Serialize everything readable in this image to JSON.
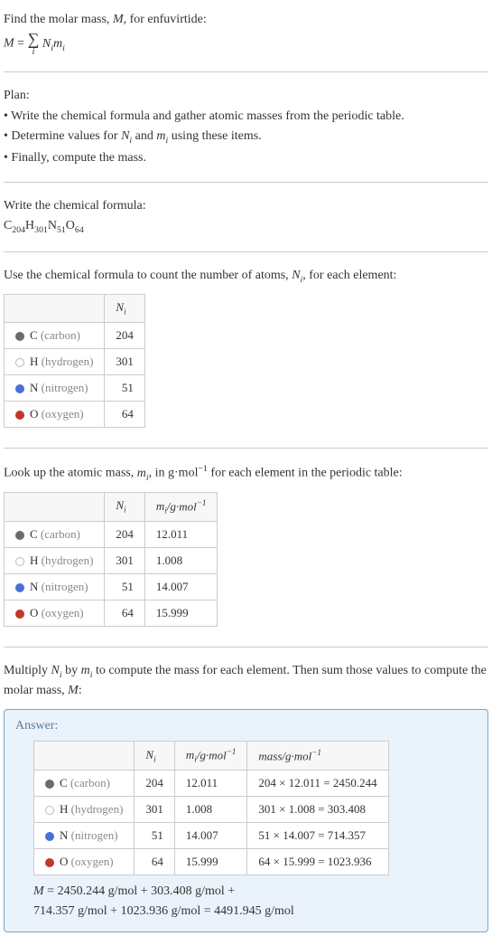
{
  "intro": {
    "line1": "Find the molar mass, M, for enfuvirtide:",
    "formula_prefix": "M = ",
    "formula_suffix_Ni": "N",
    "formula_suffix_mi": "m",
    "sub_i": "i"
  },
  "plan": {
    "heading": "Plan:",
    "items": [
      "• Write the chemical formula and gather atomic masses from the periodic table.",
      "• Determine values for Nᵢ and mᵢ using these items.",
      "• Finally, compute the mass."
    ]
  },
  "chemformula": {
    "heading": "Write the chemical formula:",
    "parts": [
      "C",
      "204",
      "H",
      "301",
      "N",
      "51",
      "O",
      "64"
    ]
  },
  "count": {
    "heading": "Use the chemical formula to count the number of atoms, Nᵢ, for each element:",
    "col_Ni": "Nᵢ",
    "rows": [
      {
        "dot": "#6b6b6b",
        "dot_border": "#6b6b6b",
        "symbol": "C",
        "name": "(carbon)",
        "N": "204"
      },
      {
        "dot": "#ffffff",
        "dot_border": "#bbb",
        "symbol": "H",
        "name": "(hydrogen)",
        "N": "301"
      },
      {
        "dot": "#4a6fd6",
        "dot_border": "#4a6fd6",
        "symbol": "N",
        "name": "(nitrogen)",
        "N": "51"
      },
      {
        "dot": "#c0392b",
        "dot_border": "#c0392b",
        "symbol": "O",
        "name": "(oxygen)",
        "N": "64"
      }
    ]
  },
  "lookup": {
    "heading": "Look up the atomic mass, mᵢ, in g·mol⁻¹ for each element in the periodic table:",
    "col_Ni": "Nᵢ",
    "col_mi": "mᵢ/g·mol⁻¹",
    "rows": [
      {
        "dot": "#6b6b6b",
        "dot_border": "#6b6b6b",
        "symbol": "C",
        "name": "(carbon)",
        "N": "204",
        "m": "12.011"
      },
      {
        "dot": "#ffffff",
        "dot_border": "#bbb",
        "symbol": "H",
        "name": "(hydrogen)",
        "N": "301",
        "m": "1.008"
      },
      {
        "dot": "#4a6fd6",
        "dot_border": "#4a6fd6",
        "symbol": "N",
        "name": "(nitrogen)",
        "N": "51",
        "m": "14.007"
      },
      {
        "dot": "#c0392b",
        "dot_border": "#c0392b",
        "symbol": "O",
        "name": "(oxygen)",
        "N": "64",
        "m": "15.999"
      }
    ]
  },
  "multiply": {
    "heading": "Multiply Nᵢ by mᵢ to compute the mass for each element. Then sum those values to compute the molar mass, M:"
  },
  "answer": {
    "label": "Answer:",
    "col_Ni": "Nᵢ",
    "col_mi": "mᵢ/g·mol⁻¹",
    "col_mass": "mass/g·mol⁻¹",
    "rows": [
      {
        "dot": "#6b6b6b",
        "dot_border": "#6b6b6b",
        "symbol": "C",
        "name": "(carbon)",
        "N": "204",
        "m": "12.011",
        "mass": "204 × 12.011 = 2450.244"
      },
      {
        "dot": "#ffffff",
        "dot_border": "#bbb",
        "symbol": "H",
        "name": "(hydrogen)",
        "N": "301",
        "m": "1.008",
        "mass": "301 × 1.008 = 303.408"
      },
      {
        "dot": "#4a6fd6",
        "dot_border": "#4a6fd6",
        "symbol": "N",
        "name": "(nitrogen)",
        "N": "51",
        "m": "14.007",
        "mass": "51 × 14.007 = 714.357"
      },
      {
        "dot": "#c0392b",
        "dot_border": "#c0392b",
        "symbol": "O",
        "name": "(oxygen)",
        "N": "64",
        "m": "15.999",
        "mass": "64 × 15.999 = 1023.936"
      }
    ],
    "result_line1": "M = 2450.244 g/mol + 303.408 g/mol +",
    "result_line2": "714.357 g/mol + 1023.936 g/mol = 4491.945 g/mol"
  },
  "colors": {
    "answer_border": "#7aa3cc",
    "answer_bg": "#eaf3fb"
  }
}
